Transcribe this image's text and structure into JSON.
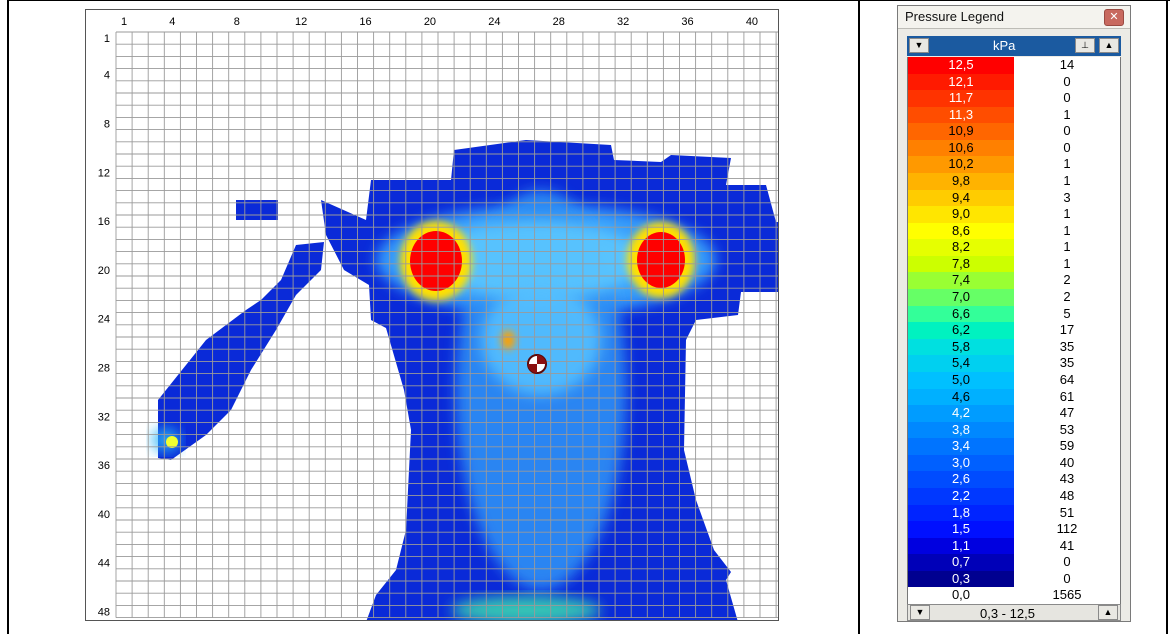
{
  "heatmap": {
    "columns": 42,
    "rows": 48,
    "x_tick_labels": [
      "1",
      "4",
      "8",
      "12",
      "16",
      "20",
      "24",
      "28",
      "32",
      "36",
      "40"
    ],
    "y_tick_labels": [
      "1",
      "4",
      "8",
      "12",
      "16",
      "20",
      "24",
      "28",
      "32",
      "36",
      "40",
      "44",
      "48"
    ],
    "marker": "center-of-pressure-icon"
  },
  "legend": {
    "title": "Pressure Legend",
    "close_icon": "close-icon",
    "unit": "kPa",
    "range": "0,3 - 12,5",
    "rows": [
      {
        "value": "12,5",
        "count": "14",
        "color": "#ff0000"
      },
      {
        "value": "12,1",
        "count": "0",
        "color": "#ff1a00"
      },
      {
        "value": "11,7",
        "count": "0",
        "color": "#ff3300"
      },
      {
        "value": "11,3",
        "count": "1",
        "color": "#ff4d00"
      },
      {
        "value": "10,9",
        "count": "0",
        "color": "#ff6600"
      },
      {
        "value": "10,6",
        "count": "0",
        "color": "#ff8000"
      },
      {
        "value": "10,2",
        "count": "1",
        "color": "#ff9900"
      },
      {
        "value": "9,8",
        "count": "1",
        "color": "#ffb300"
      },
      {
        "value": "9,4",
        "count": "3",
        "color": "#ffcc00"
      },
      {
        "value": "9,0",
        "count": "1",
        "color": "#ffe600"
      },
      {
        "value": "8,6",
        "count": "1",
        "color": "#ffff00"
      },
      {
        "value": "8,2",
        "count": "1",
        "color": "#e6ff00"
      },
      {
        "value": "7,8",
        "count": "1",
        "color": "#ccff00"
      },
      {
        "value": "7,4",
        "count": "2",
        "color": "#99ff33"
      },
      {
        "value": "7,0",
        "count": "2",
        "color": "#66ff66"
      },
      {
        "value": "6,6",
        "count": "5",
        "color": "#33ff99"
      },
      {
        "value": "6,2",
        "count": "17",
        "color": "#00f2c0"
      },
      {
        "value": "5,8",
        "count": "35",
        "color": "#00e0e0"
      },
      {
        "value": "5,4",
        "count": "35",
        "color": "#00d0f0"
      },
      {
        "value": "5,0",
        "count": "64",
        "color": "#00c0ff"
      },
      {
        "value": "4,6",
        "count": "61",
        "color": "#00b0ff"
      },
      {
        "value": "4,2",
        "count": "47",
        "color": "#009cff"
      },
      {
        "value": "3,8",
        "count": "53",
        "color": "#0088ff"
      },
      {
        "value": "3,4",
        "count": "59",
        "color": "#0074ff"
      },
      {
        "value": "3,0",
        "count": "40",
        "color": "#0060ff"
      },
      {
        "value": "2,6",
        "count": "43",
        "color": "#004cff"
      },
      {
        "value": "2,2",
        "count": "48",
        "color": "#0038ff"
      },
      {
        "value": "1,8",
        "count": "51",
        "color": "#0024ff"
      },
      {
        "value": "1,5",
        "count": "112",
        "color": "#0010ff"
      },
      {
        "value": "1,1",
        "count": "41",
        "color": "#0000e0"
      },
      {
        "value": "0,7",
        "count": "0",
        "color": "#0000b8"
      },
      {
        "value": "0,3",
        "count": "0",
        "color": "#000090"
      },
      {
        "value": "0,0",
        "count": "1565",
        "color": "#ffffff"
      }
    ]
  }
}
